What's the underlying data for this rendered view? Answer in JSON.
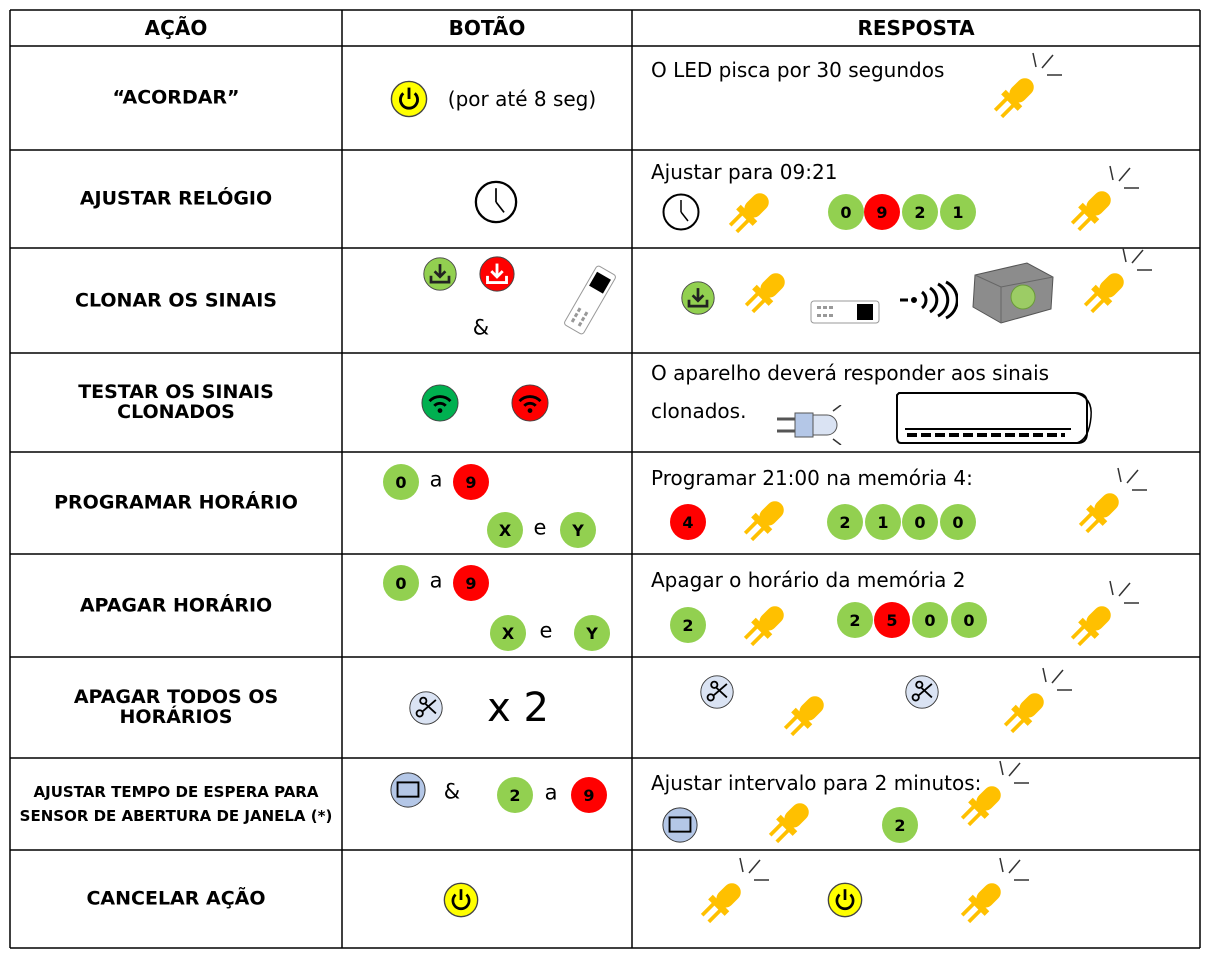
{
  "table": {
    "header": [
      "AÇÃO",
      "BOTÃO",
      "RESPOSTA"
    ],
    "rows": [
      {
        "action": "“ACORDAR”",
        "button": [
          "(por até 8 seg)"
        ],
        "response": [
          "O LED pisca por 30 segundos"
        ]
      },
      {
        "action": "AJUSTAR RELÓGIO",
        "response": [
          "Ajustar para 09:21",
          "0",
          "9",
          "2",
          "1"
        ]
      },
      {
        "action": "CLONAR OS SINAIS",
        "button": [
          "&"
        ]
      },
      {
        "action": "TESTAR OS SINAIS CLONADOS",
        "response": [
          "O aparelho deverá responder aos sinais clonados."
        ]
      },
      {
        "action": "PROGRAMAR HORÁRIO",
        "button": [
          "0",
          "a",
          "9",
          "X",
          "e",
          "Y"
        ],
        "response": [
          "Programar 21:00 na memória 4:",
          "4",
          "2",
          "1",
          "0",
          "0"
        ]
      },
      {
        "action": "APAGAR HORÁRIO",
        "button": [
          "0",
          "a",
          "9",
          "X",
          "e",
          "Y"
        ],
        "response": [
          "Apagar o horário da memória 2",
          "2",
          "2",
          "5",
          "0",
          "0"
        ]
      },
      {
        "action": "APAGAR TODOS OS HORÁRIOS",
        "button": [
          "x 2"
        ]
      },
      {
        "action": "AJUSTAR TEMPO DE ESPERA PARA SENSOR DE ABERTURA DE JANELA (*)",
        "button": [
          "&",
          "2",
          "a",
          "9"
        ],
        "response": [
          "Ajustar intervalo para 2 minutos:",
          "2"
        ]
      },
      {
        "action": "CANCELAR AÇÃO"
      }
    ]
  }
}
